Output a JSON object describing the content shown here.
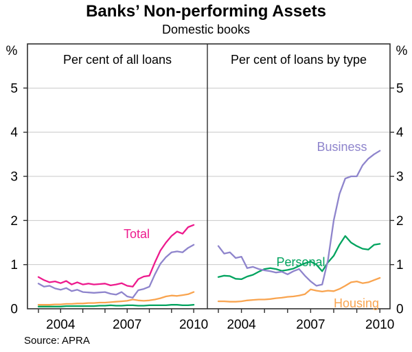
{
  "figure": {
    "title": "Banks’ Non-performing Assets",
    "subtitle": "Domestic books",
    "source": "Source: APRA"
  },
  "chart_data": {
    "type": "line",
    "title": "Banks’ Non-performing Assets",
    "subtitle": "Domestic books",
    "source": "Source: APRA",
    "frequency": "quarterly",
    "x_start_year": 2003.0,
    "x_step": 0.25,
    "y_axis": {
      "unit": "%",
      "min": 0,
      "max": 6,
      "ticks": [
        0,
        1,
        2,
        3,
        4,
        5
      ],
      "gridlines": [
        1,
        2,
        3,
        4,
        5
      ]
    },
    "x_axis": {
      "tick_years": [
        2003,
        2004,
        2005,
        2006,
        2007,
        2008,
        2009,
        2010
      ],
      "labeled_years": [
        2004,
        2007,
        2010
      ]
    },
    "colors": {
      "total": "#ED1A8D",
      "business": "#8E84CC",
      "personal": "#00A35E",
      "housing": "#F9A44F",
      "grid": "#C8C8C8",
      "axis": "#2E2E2E"
    },
    "panels": [
      {
        "heading": "Per cent of all loans",
        "series": [
          {
            "name": "Personal",
            "color": "#00A35E",
            "label_visible": false,
            "values": [
              0.05,
              0.05,
              0.05,
              0.05,
              0.05,
              0.06,
              0.06,
              0.06,
              0.06,
              0.06,
              0.06,
              0.07,
              0.07,
              0.08,
              0.07,
              0.07,
              0.08,
              0.08,
              0.07,
              0.07,
              0.08,
              0.08,
              0.08,
              0.08,
              0.09,
              0.09,
              0.08,
              0.08,
              0.09
            ]
          },
          {
            "name": "Housing",
            "color": "#F9A44F",
            "label_visible": false,
            "values": [
              0.09,
              0.09,
              0.09,
              0.1,
              0.1,
              0.11,
              0.11,
              0.12,
              0.12,
              0.13,
              0.13,
              0.14,
              0.14,
              0.15,
              0.16,
              0.17,
              0.18,
              0.21,
              0.19,
              0.18,
              0.19,
              0.21,
              0.24,
              0.28,
              0.3,
              0.29,
              0.31,
              0.33,
              0.38
            ]
          },
          {
            "name": "Business",
            "color": "#8E84CC",
            "label_visible": false,
            "values": [
              0.57,
              0.5,
              0.52,
              0.46,
              0.43,
              0.47,
              0.4,
              0.43,
              0.38,
              0.37,
              0.36,
              0.37,
              0.38,
              0.34,
              0.32,
              0.38,
              0.28,
              0.25,
              0.42,
              0.45,
              0.5,
              0.78,
              1.02,
              1.17,
              1.28,
              1.3,
              1.28,
              1.38,
              1.45
            ]
          },
          {
            "name": "Total",
            "color": "#ED1A8D",
            "label_visible": true,
            "values": [
              0.72,
              0.65,
              0.6,
              0.62,
              0.58,
              0.63,
              0.55,
              0.6,
              0.55,
              0.57,
              0.55,
              0.56,
              0.57,
              0.53,
              0.55,
              0.58,
              0.52,
              0.5,
              0.67,
              0.73,
              0.75,
              1.05,
              1.32,
              1.5,
              1.65,
              1.75,
              1.7,
              1.85,
              1.9
            ]
          }
        ]
      },
      {
        "heading": "Per cent of loans by type",
        "series": [
          {
            "name": "Housing",
            "color": "#F9A44F",
            "label_visible": true,
            "values": [
              0.17,
              0.17,
              0.16,
              0.16,
              0.17,
              0.19,
              0.2,
              0.21,
              0.21,
              0.22,
              0.24,
              0.25,
              0.27,
              0.28,
              0.3,
              0.33,
              0.44,
              0.41,
              0.39,
              0.41,
              0.4,
              0.45,
              0.52,
              0.6,
              0.62,
              0.58,
              0.6,
              0.65,
              0.7
            ]
          },
          {
            "name": "Personal",
            "color": "#00A35E",
            "label_visible": true,
            "values": [
              0.72,
              0.75,
              0.74,
              0.68,
              0.67,
              0.73,
              0.77,
              0.84,
              0.9,
              0.92,
              0.9,
              0.86,
              0.88,
              0.91,
              0.97,
              1.03,
              1.07,
              1.0,
              0.85,
              1.05,
              1.2,
              1.45,
              1.65,
              1.5,
              1.42,
              1.36,
              1.34,
              1.45,
              1.47
            ]
          },
          {
            "name": "Business",
            "color": "#8E84CC",
            "label_visible": true,
            "values": [
              1.42,
              1.25,
              1.28,
              1.15,
              1.18,
              0.92,
              0.95,
              0.9,
              0.87,
              0.85,
              0.82,
              0.84,
              0.78,
              0.85,
              0.9,
              0.75,
              0.62,
              0.52,
              0.55,
              1.1,
              2.0,
              2.6,
              2.95,
              3.0,
              3.0,
              3.25,
              3.4,
              3.5,
              3.58
            ]
          }
        ]
      }
    ]
  }
}
